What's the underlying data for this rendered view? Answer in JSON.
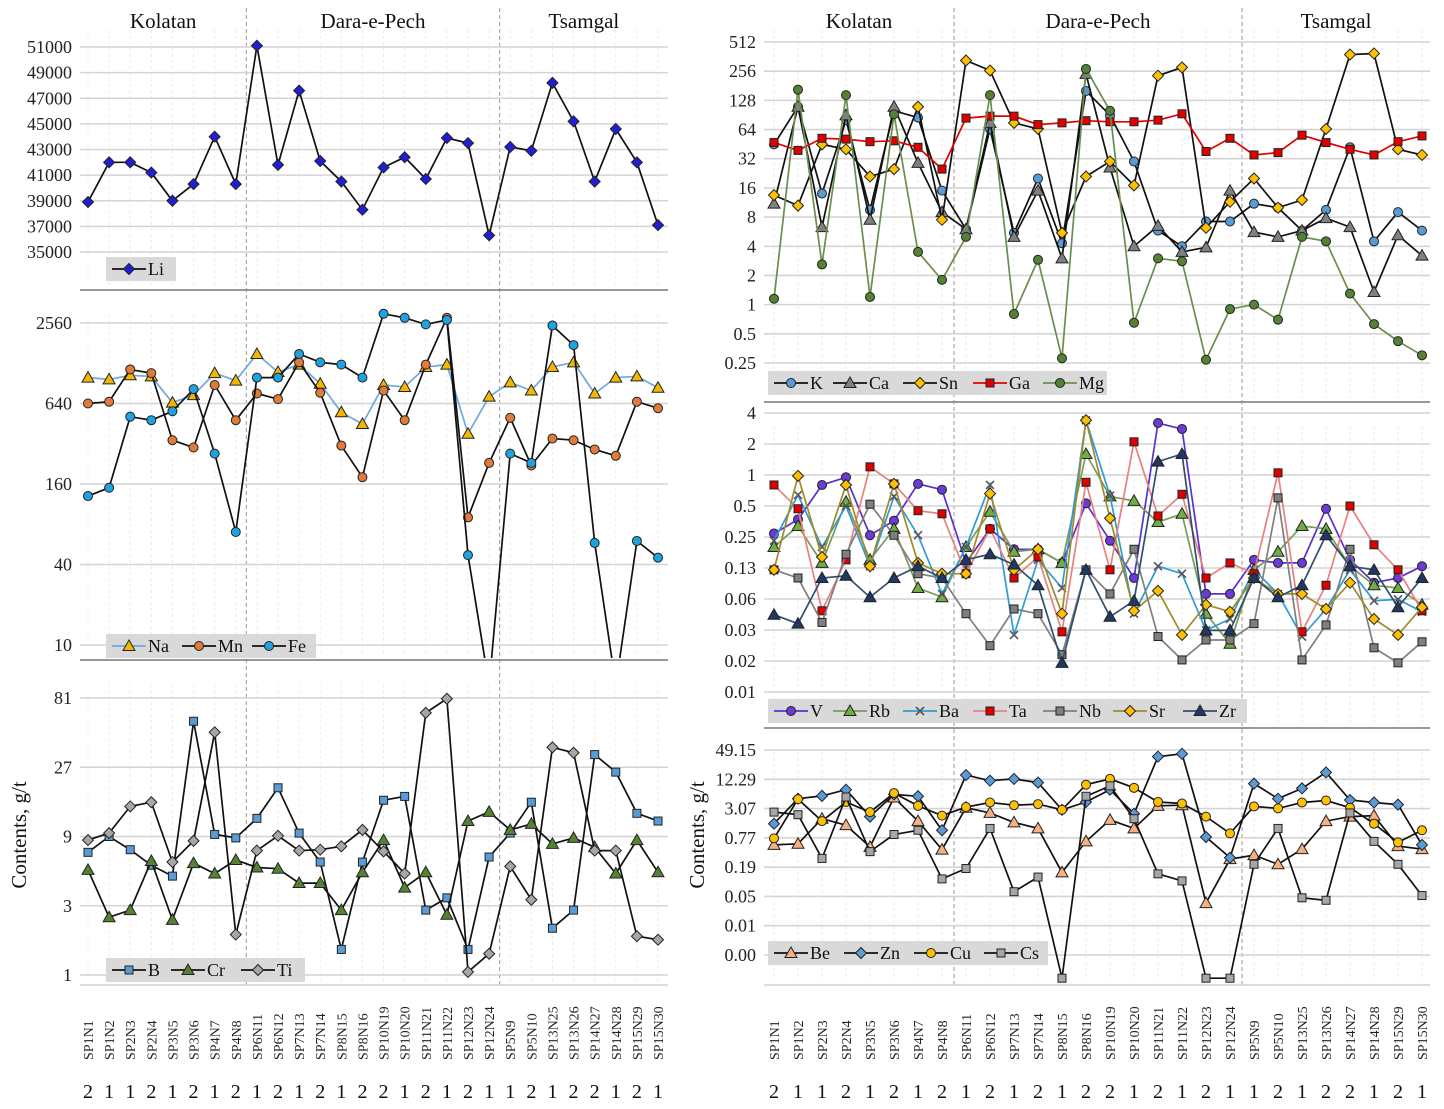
{
  "samples": [
    "SP1N1",
    "SP1N2",
    "SP2N3",
    "SP2N4",
    "SP3N5",
    "SP3N6",
    "SP4N7",
    "SP4N8",
    "SP6N11",
    "SP6N12",
    "SP7N13",
    "SP7N14",
    "SP8N15",
    "SP8N16",
    "SP10N19",
    "SP10N20",
    "SP11N21",
    "SP11N22",
    "SP12N23",
    "SP12N24",
    "SP5N9",
    "SP5N10",
    "SP13N25",
    "SP13N26",
    "SP14N27",
    "SP14N28",
    "SP15N29",
    "SP15N30"
  ],
  "groups": [
    "2",
    "1",
    "1",
    "2",
    "1",
    "2",
    "1",
    "2",
    "1",
    "2",
    "1",
    "2",
    "1",
    "2",
    "2",
    "1",
    "2",
    "1",
    "2",
    "1",
    "1",
    "2",
    "1",
    "2",
    "2",
    "1",
    "2",
    "1"
  ],
  "regions": [
    "Kolatan",
    "Dara-e-Pech",
    "Tsamgal"
  ],
  "region_boundaries_after_index": [
    7,
    19
  ],
  "y_axis_label": "Contents, g/t",
  "chart_data": [
    {
      "id": "li",
      "type": "line",
      "yscale": "linear",
      "ticks": [
        "51000",
        "49000",
        "47000",
        "45000",
        "43000",
        "41000",
        "39000",
        "37000",
        "35000"
      ],
      "tick_values": [
        51000,
        49000,
        47000,
        45000,
        43000,
        41000,
        39000,
        37000,
        35000
      ],
      "ylim": [
        35000,
        51000
      ],
      "legend_placement": "bottom-left",
      "series": [
        {
          "name": "Li",
          "color": "#1f1fd6",
          "marker": "diamond",
          "line": "#111111",
          "values": [
            38900,
            42000,
            42000,
            41200,
            39000,
            40300,
            44000,
            40300,
            51100,
            41800,
            47600,
            42100,
            40500,
            38300,
            41600,
            42400,
            40700,
            43900,
            43500,
            36300,
            43200,
            42900,
            48200,
            45200,
            40500,
            44600,
            42000,
            37100
          ]
        }
      ]
    },
    {
      "id": "na_mn_fe",
      "type": "line",
      "yscale": "log",
      "ticks": [
        "2560",
        "640",
        "160",
        "40",
        "10"
      ],
      "tick_values": [
        2560,
        640,
        160,
        40,
        10
      ],
      "ylim": [
        10,
        2560
      ],
      "legend_placement": "bottom-left",
      "series": [
        {
          "name": "Na",
          "color": "#f2b705",
          "marker": "triangle",
          "line": "#6fa8dc",
          "values": [
            1000,
            970,
            1040,
            1020,
            650,
            740,
            1080,
            950,
            1500,
            1100,
            1250,
            900,
            550,
            450,
            880,
            850,
            1200,
            1250,
            380,
            720,
            920,
            800,
            1200,
            1300,
            760,
            1000,
            1020,
            840
          ]
        },
        {
          "name": "Mn",
          "color": "#e07b39",
          "marker": "circle",
          "line": "#111111",
          "values": [
            640,
            660,
            1150,
            1080,
            340,
            300,
            880,
            480,
            760,
            690,
            1300,
            770,
            310,
            180,
            800,
            480,
            1250,
            2800,
            90,
            230,
            500,
            220,
            350,
            340,
            290,
            260,
            660,
            590
          ]
        },
        {
          "name": "Fe",
          "color": "#1fa3e0",
          "marker": "circle",
          "line": "#111111",
          "values": [
            130,
            150,
            510,
            480,
            560,
            820,
            270,
            70,
            1000,
            1000,
            1500,
            1300,
            1250,
            1000,
            3000,
            2800,
            2500,
            2700,
            47,
            5,
            270,
            230,
            2450,
            1750,
            58,
            5,
            60,
            45
          ]
        }
      ]
    },
    {
      "id": "b_cr_ti",
      "type": "line",
      "yscale": "log",
      "ticks": [
        "81",
        "27",
        "9",
        "3",
        "1"
      ],
      "tick_values": [
        81,
        27,
        9,
        3,
        1
      ],
      "ylim": [
        1,
        81
      ],
      "legend_placement": "bottom-left",
      "series": [
        {
          "name": "B",
          "color": "#5b9bd5",
          "marker": "square",
          "line": "#111111",
          "values": [
            7,
            9,
            7.3,
            5.7,
            4.8,
            56,
            9.3,
            8.8,
            12,
            19.5,
            9.5,
            6,
            1.5,
            6,
            16,
            17,
            2.8,
            3.4,
            1.5,
            6.5,
            9.5,
            15.5,
            2.1,
            2.8,
            33,
            25,
            13,
            11.5
          ]
        },
        {
          "name": "Cr",
          "color": "#548235",
          "marker": "triangle",
          "line": "#111111",
          "values": [
            5.3,
            2.5,
            2.8,
            6.1,
            2.4,
            5.9,
            5,
            6.2,
            5.5,
            5.4,
            4.3,
            4.3,
            2.8,
            5.1,
            8.5,
            4,
            5.1,
            2.6,
            11.5,
            13.3,
            10,
            11,
            8,
            8.8,
            7.6,
            5,
            8.5,
            5.1
          ]
        },
        {
          "name": "Ti",
          "color": "#a6a6a6",
          "marker": "diamond",
          "line": "#111111",
          "values": [
            8.5,
            9.5,
            14.5,
            15.5,
            6,
            8.4,
            47,
            1.9,
            7.2,
            9.1,
            7.2,
            7.3,
            7.7,
            10,
            7.1,
            5,
            64,
            80,
            1.05,
            1.4,
            5.6,
            3.3,
            37,
            34,
            7.2,
            7.2,
            1.85,
            1.75
          ]
        }
      ]
    },
    {
      "id": "k_ca_sn_ga_mg",
      "type": "line",
      "yscale": "log",
      "ticks": [
        "512",
        "256",
        "128",
        "64",
        "32",
        "16",
        "8",
        "4",
        "2",
        "1",
        "0.5",
        "0.25"
      ],
      "tick_values": [
        512,
        256,
        128,
        64,
        32,
        16,
        8,
        4,
        2,
        1,
        0.5,
        0.25
      ],
      "ylim": [
        0.25,
        512
      ],
      "legend_placement": "bottom-left",
      "series": [
        {
          "name": "K",
          "color": "#5b9bd5",
          "marker": "circle",
          "line": "#111111",
          "values": [
            45,
            110,
            14,
            80,
            9.5,
            100,
            85,
            15,
            6,
            65,
            5.5,
            20,
            4.3,
            160,
            90,
            30,
            5.8,
            4,
            7.2,
            7.2,
            11,
            10,
            5.8,
            9.5,
            42,
            4.5,
            9,
            5.8
          ]
        },
        {
          "name": "Ca",
          "color": "#808080",
          "marker": "triangle",
          "line": "#111111",
          "values": [
            11,
            110,
            6.3,
            90,
            7.5,
            110,
            29,
            9,
            6,
            75,
            5,
            15,
            3,
            240,
            26,
            4,
            6.5,
            3.5,
            3.9,
            15,
            5.6,
            5,
            5.8,
            7.8,
            6.3,
            1.35,
            5.2,
            3.2
          ]
        },
        {
          "name": "Sn",
          "color": "#ffc000",
          "marker": "diamond",
          "line": "#111111",
          "values": [
            13.5,
            10.5,
            45,
            40,
            21,
            25,
            110,
            7.5,
            330,
            260,
            75,
            65,
            5.5,
            21,
            30,
            17,
            230,
            280,
            6.2,
            11.5,
            20,
            10,
            12,
            65,
            380,
            390,
            40,
            35
          ]
        },
        {
          "name": "Ga",
          "color": "#e00000",
          "marker": "square",
          "line": "#e00000",
          "values": [
            47,
            39,
            52,
            51,
            48,
            49,
            42,
            25,
            84,
            88,
            88,
            72,
            75,
            79,
            77,
            77,
            80,
            93,
            38,
            52,
            35,
            37,
            56,
            47,
            40,
            35,
            48,
            55
          ]
        },
        {
          "name": "Mg",
          "color": "#548235",
          "marker": "circle",
          "line": "#6b8e4e",
          "values": [
            1.15,
            165,
            2.6,
            145,
            1.2,
            92,
            3.5,
            1.8,
            5,
            145,
            0.8,
            2.9,
            0.28,
            270,
            100,
            0.65,
            3,
            2.8,
            0.27,
            0.9,
            1,
            0.7,
            5,
            4.5,
            1.3,
            0.63,
            0.42,
            0.3
          ]
        }
      ]
    },
    {
      "id": "v_rb_ba_ta_nb_sr_zr",
      "type": "line",
      "yscale": "log",
      "ticks": [
        "4",
        "2",
        "1",
        "0.5",
        "0.25",
        "0.13",
        "0.06",
        "0.03",
        "0.02",
        "0.01"
      ],
      "tick_values": [
        4,
        2,
        1,
        0.5,
        0.25,
        0.125,
        0.0625,
        0.03125,
        0.015625,
        0.0078125
      ],
      "ylim": [
        0.0078125,
        4
      ],
      "legend_placement": "bottom-left",
      "series": [
        {
          "name": "V",
          "color": "#6a3bd6",
          "marker": "circle",
          "line": "#5b2fd0",
          "values": [
            0.27,
            0.37,
            0.8,
            0.95,
            0.26,
            0.36,
            0.82,
            0.72,
            0.14,
            0.3,
            0.19,
            0.19,
            0.14,
            0.53,
            0.23,
            0.1,
            3.2,
            2.8,
            0.07,
            0.07,
            0.15,
            0.14,
            0.14,
            0.47,
            0.15,
            0.09,
            0.1,
            0.13
          ]
        },
        {
          "name": "Rb",
          "color": "#70ad47",
          "marker": "triangle",
          "line": "#7a9a5a",
          "values": [
            0.2,
            0.32,
            0.14,
            0.55,
            0.15,
            0.3,
            0.08,
            0.065,
            0.2,
            0.44,
            0.18,
            0.19,
            0.14,
            1.6,
            0.62,
            0.56,
            0.35,
            0.42,
            0.045,
            0.023,
            0.12,
            0.18,
            0.32,
            0.3,
            0.13,
            0.085,
            0.08,
            0.055
          ]
        },
        {
          "name": "Ba",
          "color": "#2e9bd6",
          "marker": "x",
          "line": "#2e9bd6",
          "values": [
            0.23,
            0.64,
            0.2,
            0.5,
            0.13,
            0.62,
            0.26,
            0.07,
            0.2,
            0.8,
            0.028,
            0.15,
            0.08,
            3.4,
            0.63,
            0.045,
            0.13,
            0.11,
            0.031,
            0.04,
            0.12,
            0.07,
            0.027,
            0.05,
            0.12,
            0.06,
            0.062,
            0.047
          ]
        },
        {
          "name": "Ta",
          "color": "#e00000",
          "marker": "square",
          "line": "#e88080",
          "values": [
            0.8,
            0.47,
            0.048,
            0.15,
            1.2,
            0.82,
            0.45,
            0.42,
            0.11,
            0.3,
            0.1,
            0.16,
            0.03,
            0.85,
            0.12,
            2.1,
            0.4,
            0.65,
            0.1,
            0.14,
            0.11,
            1.05,
            0.03,
            0.085,
            0.5,
            0.21,
            0.12,
            0.048
          ]
        },
        {
          "name": "Nb",
          "color": "#7f7f7f",
          "marker": "square",
          "line": "#7f7f7f",
          "values": [
            0.12,
            0.1,
            0.037,
            0.17,
            0.52,
            0.26,
            0.11,
            0.1,
            0.045,
            0.022,
            0.05,
            0.045,
            0.018,
            0.12,
            0.07,
            0.19,
            0.027,
            0.016,
            0.025,
            0.025,
            0.036,
            0.6,
            0.016,
            0.035,
            0.19,
            0.021,
            0.015,
            0.024
          ]
        },
        {
          "name": "Sr",
          "color": "#ffc000",
          "marker": "diamond",
          "line": "#a08a2a",
          "values": [
            0.12,
            0.98,
            0.16,
            0.8,
            0.13,
            0.82,
            0.14,
            0.11,
            0.11,
            0.66,
            0.12,
            0.19,
            0.045,
            3.4,
            0.38,
            0.048,
            0.075,
            0.028,
            0.055,
            0.047,
            0.1,
            0.07,
            0.07,
            0.05,
            0.09,
            0.04,
            0.028,
            0.052
          ]
        },
        {
          "name": "Zr",
          "color": "#1f3864",
          "marker": "triangle",
          "line": "#2f4f6f",
          "values": [
            0.044,
            0.036,
            0.1,
            0.105,
            0.065,
            0.1,
            0.13,
            0.1,
            0.15,
            0.17,
            0.135,
            0.085,
            0.015,
            0.12,
            0.042,
            0.06,
            1.35,
            1.6,
            0.031,
            0.031,
            0.1,
            0.065,
            0.085,
            0.26,
            0.13,
            0.12,
            0.052,
            0.1
          ]
        }
      ]
    },
    {
      "id": "be_zn_cu_cs",
      "type": "line",
      "yscale": "log",
      "ticks": [
        "49.15",
        "12.29",
        "3.07",
        "0.77",
        "0.19",
        "0.05",
        "0.01",
        "0.00"
      ],
      "tick_values": [
        49.152,
        12.288,
        3.072,
        0.768,
        0.192,
        0.048,
        0.012,
        0.003
      ],
      "ylim": [
        0.003,
        49.152
      ],
      "legend_placement": "bottom-left",
      "series": [
        {
          "name": "Be",
          "color": "#f4b183",
          "marker": "triangle",
          "line": "#111111",
          "values": [
            0.55,
            0.58,
            1.9,
            1.4,
            0.5,
            5.2,
            1.7,
            0.44,
            3.2,
            2.5,
            1.6,
            1.2,
            0.15,
            0.65,
            1.8,
            1.2,
            3.5,
            3.6,
            0.035,
            0.28,
            0.34,
            0.22,
            0.45,
            1.7,
            2.1,
            2.2,
            0.52,
            0.45
          ]
        },
        {
          "name": "Zn",
          "color": "#5b9bd5",
          "marker": "diamond",
          "line": "#111111",
          "values": [
            1.5,
            4.9,
            5.6,
            7.5,
            2.1,
            6,
            5.5,
            1.1,
            15,
            11.5,
            12.5,
            10.5,
            2.9,
            4.2,
            7.5,
            2.4,
            36,
            41,
            0.8,
            0.3,
            10,
            4.9,
            8,
            17,
            4.6,
            4.1,
            3.7,
            0.55
          ]
        },
        {
          "name": "Cu",
          "color": "#ffc000",
          "marker": "circle",
          "line": "#111111",
          "values": [
            0.75,
            4.8,
            1.7,
            4.2,
            2.6,
            6.4,
            3.5,
            2.2,
            3.3,
            4.1,
            3.6,
            3.8,
            2.9,
            9.5,
            12.5,
            8.2,
            4.2,
            3.9,
            2.1,
            0.95,
            3.4,
            3.1,
            4.1,
            4.5,
            3.2,
            1.5,
            0.62,
            1.1
          ]
        },
        {
          "name": "Cs",
          "color": "#a6a6a6",
          "marker": "square",
          "line": "#111111",
          "values": [
            2.6,
            2.3,
            0.29,
            5.3,
            0.4,
            0.9,
            1.1,
            0.11,
            0.18,
            1.2,
            0.06,
            0.12,
            0.001,
            5.5,
            9,
            1.9,
            0.14,
            0.1,
            0.001,
            0.001,
            0.22,
            1.2,
            0.045,
            0.04,
            2.5,
            0.65,
            0.22,
            0.05
          ]
        }
      ]
    }
  ]
}
